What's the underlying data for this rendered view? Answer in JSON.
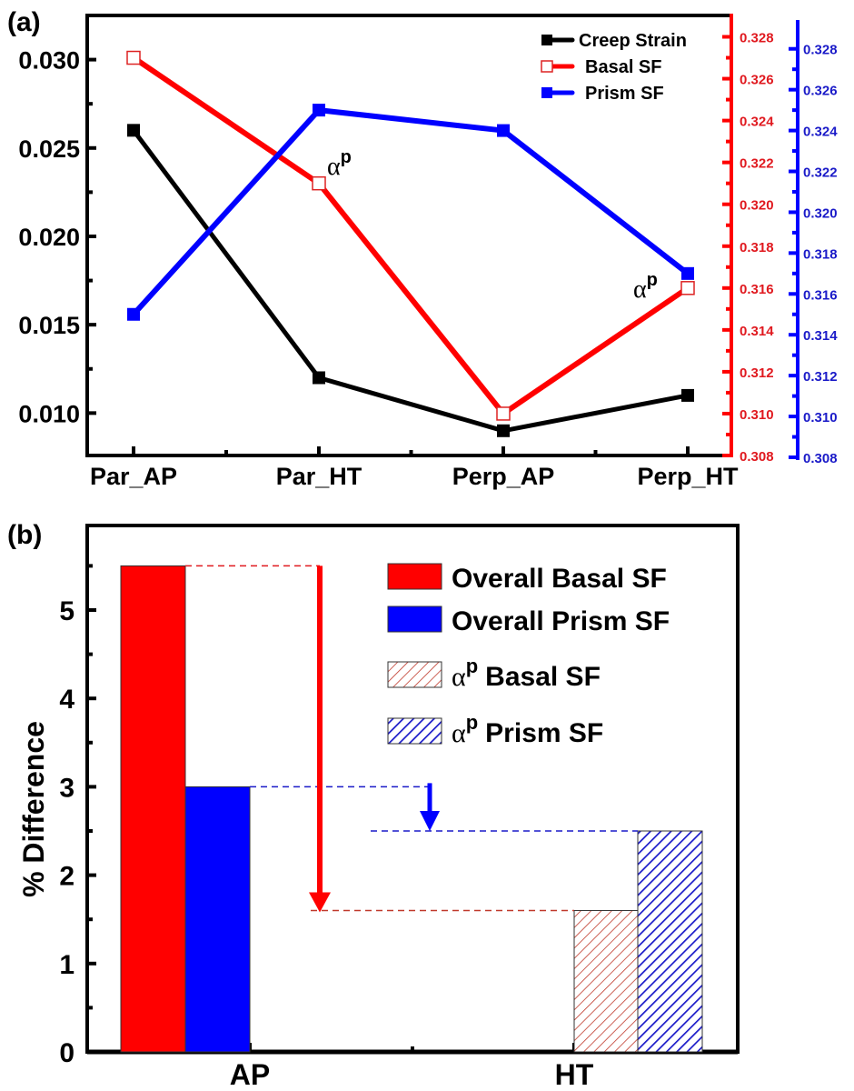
{
  "chart_data": [
    {
      "panel_label": "(a)",
      "type": "line",
      "categories": [
        "Par_AP",
        "Par_HT",
        "Perp_AP",
        "Perp_HT"
      ],
      "axes": {
        "left": {
          "ylim": [
            0.0076,
            0.0325
          ],
          "ticks": [
            "0.010",
            "0.015",
            "0.020",
            "0.025",
            "0.030"
          ],
          "color": "#000000"
        },
        "right1": {
          "ylim": [
            0.308,
            0.3285
          ],
          "ticks": [
            "0.308",
            "0.310",
            "0.312",
            "0.314",
            "0.316",
            "0.318",
            "0.320",
            "0.322",
            "0.324",
            "0.326",
            "0.328"
          ],
          "color": "#e0191f"
        },
        "right2": {
          "ylim": [
            0.308,
            0.3287
          ],
          "ticks": [
            "0.308",
            "0.310",
            "0.312",
            "0.314",
            "0.316",
            "0.318",
            "0.320",
            "0.322",
            "0.324",
            "0.326",
            "0.328"
          ],
          "color": "#1a1ac8"
        }
      },
      "series": [
        {
          "name": "Creep Strain",
          "axis": "left",
          "color": "#000000",
          "marker": "filled-square",
          "values": [
            0.026,
            0.012,
            0.009,
            0.011
          ]
        },
        {
          "name": "Basal SF",
          "axis": "right1",
          "color": "#ff0000",
          "marker": "open-square",
          "values": [
            0.327,
            0.321,
            0.31,
            0.316
          ]
        },
        {
          "name": "Prism SF",
          "axis": "right2",
          "color": "#0000ff",
          "marker": "filled-square",
          "values": [
            0.315,
            0.325,
            0.324,
            0.317
          ]
        }
      ],
      "annotations": [
        {
          "text": "α",
          "sup": "p",
          "near": "Basal SF at Par_HT"
        },
        {
          "text": "α",
          "sup": "p",
          "near": "Basal SF at Perp_HT"
        }
      ],
      "legend": {
        "placement": "top-right"
      },
      "grid": false
    },
    {
      "panel_label": "(b)",
      "type": "bar",
      "categories": [
        "AP",
        "HT"
      ],
      "ylabel": "% Difference",
      "ylim": [
        0,
        5.85
      ],
      "yticks": [
        "0",
        "1",
        "2",
        "3",
        "4",
        "5"
      ],
      "series": [
        {
          "name": "Overall Basal SF",
          "category": "AP",
          "value": 5.5,
          "fill": "#ff0000",
          "pattern": "solid"
        },
        {
          "name": "Overall Prism SF",
          "category": "AP",
          "value": 3.0,
          "fill": "#0000ff",
          "pattern": "solid"
        },
        {
          "name": "Basal SF",
          "prefix": "α",
          "sup": "p",
          "category": "HT",
          "value": 1.6,
          "fill": "#c0392b",
          "pattern": "hatch-thin"
        },
        {
          "name": "Prism SF",
          "prefix": "α",
          "sup": "p",
          "category": "HT",
          "value": 2.5,
          "fill": "#1a1ac8",
          "pattern": "hatch-thick"
        }
      ],
      "annotations": [
        {
          "type": "arrow",
          "from": 5.5,
          "to": 1.6,
          "color": "#ff0000",
          "meaning": "Basal SF drop AP to HT"
        },
        {
          "type": "arrow",
          "from": 3.0,
          "to": 2.5,
          "color": "#0000ff",
          "meaning": "Prism SF drop AP to HT"
        }
      ],
      "legend": {
        "placement": "top-right"
      },
      "grid": false
    }
  ]
}
